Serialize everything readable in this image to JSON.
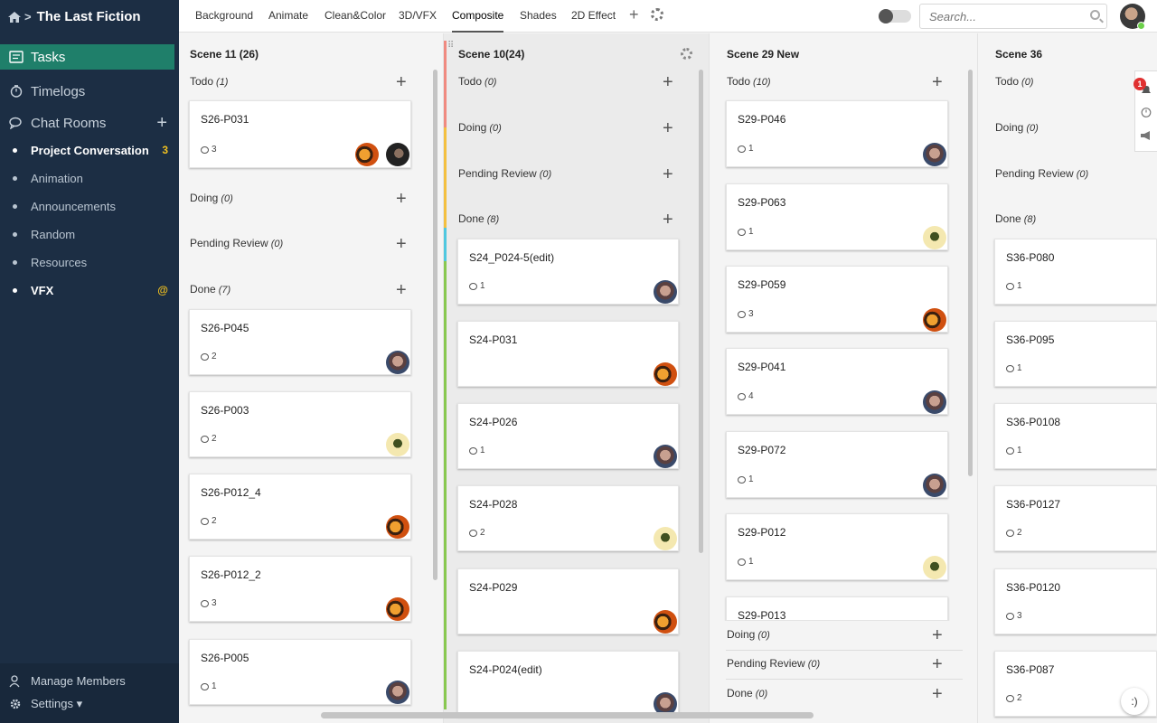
{
  "project": {
    "title": "The Last Fiction"
  },
  "sidebar": {
    "nav": [
      {
        "label": "Tasks",
        "icon": "tasks-icon",
        "active": true
      },
      {
        "label": "Timelogs",
        "icon": "timer-icon"
      },
      {
        "label": "Chat Rooms",
        "icon": "chat-icon"
      }
    ],
    "rooms": [
      {
        "label": "Project Conversation",
        "badge": "3",
        "bold": true
      },
      {
        "label": "Animation"
      },
      {
        "label": "Announcements"
      },
      {
        "label": "Random"
      },
      {
        "label": "Resources"
      },
      {
        "label": "VFX",
        "badge": "@",
        "bold": true
      }
    ],
    "footer": {
      "manage": "Manage Members",
      "settings": "Settings ▾"
    }
  },
  "tabs": [
    "Background",
    "Animate",
    "Clean&Color",
    "3D/VFX",
    "Composite",
    "Shades",
    "2D Effect"
  ],
  "active_tab": "Composite",
  "search": {
    "placeholder": "Search..."
  },
  "notifications": {
    "count": "1"
  },
  "chat_fab": ":)",
  "columns": [
    {
      "title": "Scene 11 (26)",
      "sections": [
        {
          "label": "Todo",
          "count": "(1)"
        },
        {
          "label": "Doing",
          "count": "(0)"
        },
        {
          "label": "Pending Review",
          "count": "(0)"
        },
        {
          "label": "Done",
          "count": "(7)"
        }
      ],
      "cards": [
        {
          "title": "S26-P031",
          "comments": "3"
        },
        {
          "title": "S26-P045",
          "comments": "2"
        },
        {
          "title": "S26-P003",
          "comments": "2"
        },
        {
          "title": "S26-P012_4",
          "comments": "2"
        },
        {
          "title": "S26-P012_2",
          "comments": "3"
        },
        {
          "title": "S26-P005",
          "comments": "1"
        }
      ]
    },
    {
      "title": "Scene 10(24)",
      "sections": [
        {
          "label": "Todo",
          "count": "(0)"
        },
        {
          "label": "Doing",
          "count": "(0)"
        },
        {
          "label": "Pending Review",
          "count": "(0)"
        },
        {
          "label": "Done",
          "count": "(8)"
        }
      ],
      "cards": [
        {
          "title": "S24_P024-5(edit)",
          "comments": "1"
        },
        {
          "title": "S24-P031",
          "comments": ""
        },
        {
          "title": "S24-P026",
          "comments": "1"
        },
        {
          "title": "S24-P028",
          "comments": "2"
        },
        {
          "title": "S24-P029",
          "comments": ""
        },
        {
          "title": "S24-P024(edit)",
          "comments": ""
        }
      ]
    },
    {
      "title": "Scene 29 New",
      "sections": [
        {
          "label": "Todo",
          "count": "(10)"
        },
        {
          "label": "Doing",
          "count": "(0)"
        },
        {
          "label": "Pending Review",
          "count": "(0)"
        },
        {
          "label": "Done",
          "count": "(0)"
        }
      ],
      "cards": [
        {
          "title": "S29-P046",
          "comments": "1"
        },
        {
          "title": "S29-P063",
          "comments": "1"
        },
        {
          "title": "S29-P059",
          "comments": "3"
        },
        {
          "title": "S29-P041",
          "comments": "4"
        },
        {
          "title": "S29-P072",
          "comments": "1"
        },
        {
          "title": "S29-P012",
          "comments": "1"
        },
        {
          "title": "S29-P013",
          "comments": ""
        }
      ]
    },
    {
      "title": "Scene 36",
      "sections": [
        {
          "label": "Todo",
          "count": "(0)"
        },
        {
          "label": "Doing",
          "count": "(0)"
        },
        {
          "label": "Pending Review",
          "count": "(0)"
        },
        {
          "label": "Done",
          "count": "(8)"
        }
      ],
      "cards": [
        {
          "title": "S36-P080",
          "comments": "1"
        },
        {
          "title": "S36-P095",
          "comments": "1"
        },
        {
          "title": "S36-P0108",
          "comments": "1"
        },
        {
          "title": "S36-P0127",
          "comments": "2"
        },
        {
          "title": "S36-P0120",
          "comments": "3"
        },
        {
          "title": "S36-P087",
          "comments": "2"
        }
      ]
    }
  ]
}
